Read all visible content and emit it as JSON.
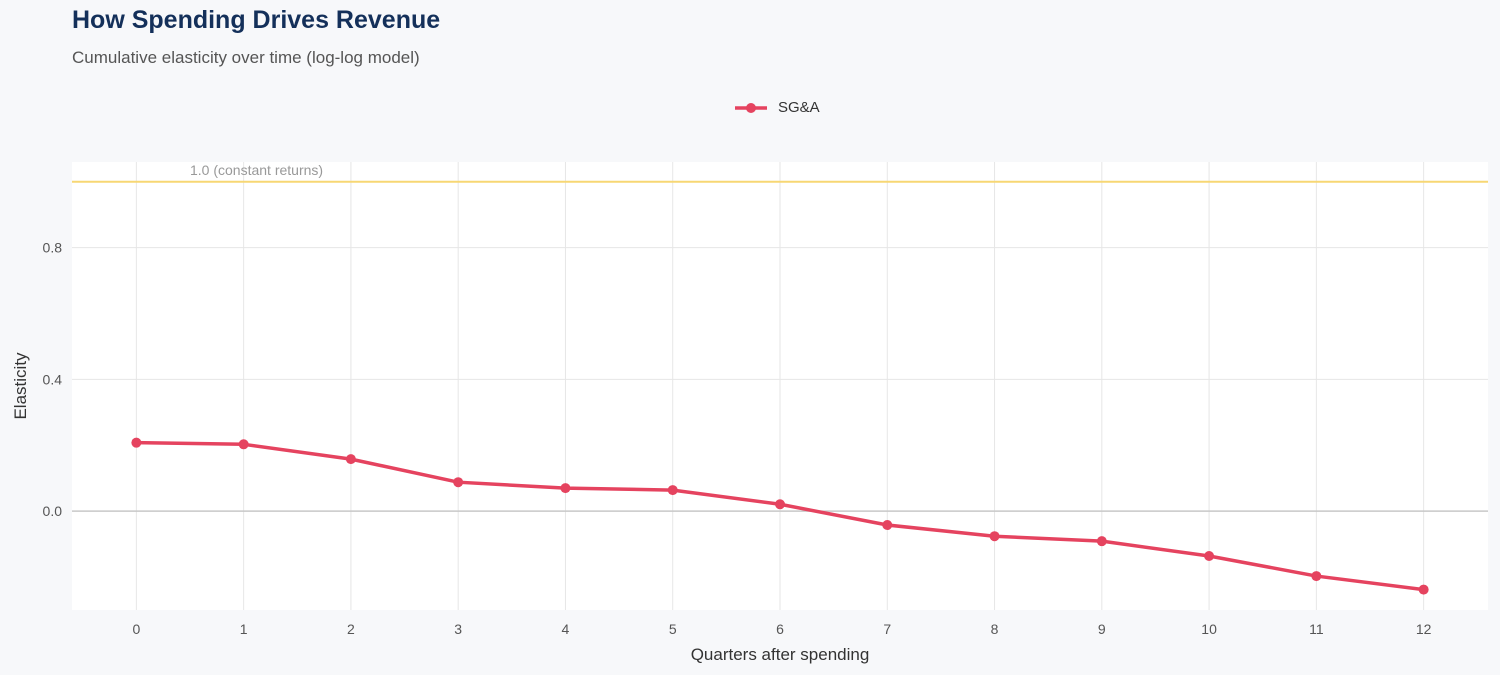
{
  "title": "How Spending Drives Revenue",
  "subtitle": "Cumulative elasticity over time (log-log model)",
  "chart_data": {
    "type": "line",
    "title": "How Spending Drives Revenue",
    "subtitle": "Cumulative elasticity over time (log-log model)",
    "xlabel": "Quarters after spending",
    "ylabel": "Elasticity",
    "x": [
      0,
      1,
      2,
      3,
      4,
      5,
      6,
      7,
      8,
      9,
      10,
      11,
      12
    ],
    "x_ticks": [
      "0",
      "1",
      "2",
      "3",
      "4",
      "5",
      "6",
      "7",
      "8",
      "9",
      "10",
      "11",
      "12"
    ],
    "y_ticks": [
      "0.0",
      "0.4",
      "0.8"
    ],
    "y_tick_values": [
      0.0,
      0.4,
      0.8
    ],
    "xlim": [
      -0.6,
      12.6
    ],
    "ylim": [
      -0.3,
      1.06
    ],
    "grid": true,
    "legend_position": "top",
    "series": [
      {
        "name": "SG&A",
        "color": "#e5435f",
        "values": [
          0.208,
          0.203,
          0.158,
          0.088,
          0.07,
          0.064,
          0.021,
          -0.042,
          -0.076,
          -0.091,
          -0.136,
          -0.197,
          -0.238
        ]
      }
    ],
    "reference_line": {
      "value": 1.0,
      "label": "1.0 (constant returns)",
      "color": "#f7d774"
    },
    "zero_line_color": "#c8c8c8"
  }
}
